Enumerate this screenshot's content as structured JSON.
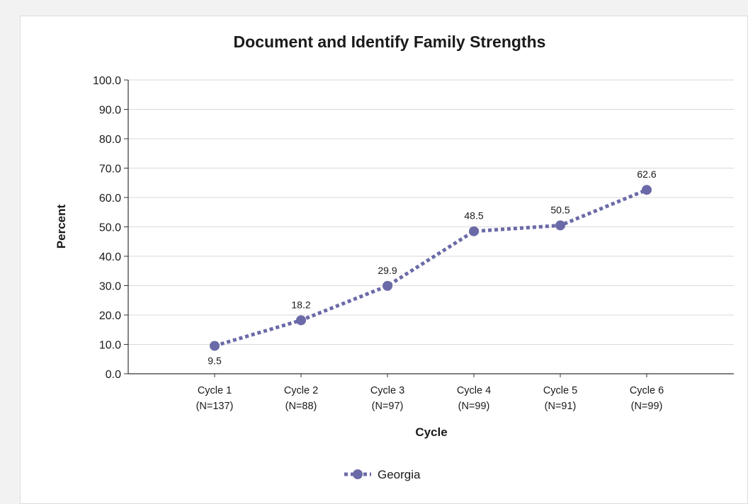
{
  "chart_data": {
    "type": "line",
    "title": "Document and Identify Family Strengths",
    "xlabel": "Cycle",
    "ylabel": "Percent",
    "ylim": [
      0,
      100
    ],
    "yticks": [
      "0.0",
      "10.0",
      "20.0",
      "30.0",
      "40.0",
      "50.0",
      "60.0",
      "70.0",
      "80.0",
      "90.0",
      "100.0"
    ],
    "grid": true,
    "legend_position": "bottom-center",
    "categories": [
      {
        "line1": "Cycle 1",
        "line2": "(N=137)"
      },
      {
        "line1": "Cycle 2",
        "line2": "(N=88)"
      },
      {
        "line1": "Cycle 3",
        "line2": "(N=97)"
      },
      {
        "line1": "Cycle 4",
        "line2": "(N=99)"
      },
      {
        "line1": "Cycle 5",
        "line2": "(N=91)"
      },
      {
        "line1": "Cycle 6",
        "line2": "(N=99)"
      }
    ],
    "series": [
      {
        "name": "Georgia",
        "color": "#6b6aa8",
        "line_style": "dotted",
        "values": [
          9.5,
          18.2,
          29.9,
          48.5,
          50.5,
          62.6
        ],
        "value_labels": [
          "9.5",
          "18.2",
          "29.9",
          "48.5",
          "50.5",
          "62.6"
        ],
        "label_positions": [
          "below",
          "above",
          "above",
          "above",
          "above",
          "above"
        ]
      }
    ]
  }
}
